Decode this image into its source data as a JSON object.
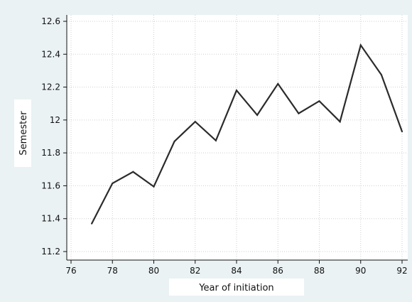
{
  "chart_data": {
    "type": "line",
    "title": "",
    "xlabel": "Year of initiation",
    "ylabel": "Semester",
    "xlim": [
      76,
      92
    ],
    "ylim": [
      11.2,
      12.6
    ],
    "xticks": [
      "76",
      "78",
      "80",
      "82",
      "84",
      "86",
      "88",
      "90",
      "92"
    ],
    "yticks": [
      "11.2",
      "11.4",
      "11.6",
      "11.8",
      "12",
      "12.2",
      "12.4",
      "12.6"
    ],
    "grid": true,
    "series": [
      {
        "x": [
          77,
          78,
          79,
          80,
          81,
          82,
          83,
          84,
          85,
          86,
          87,
          88,
          89,
          90,
          91,
          92
        ],
        "y": [
          11.37,
          11.615,
          11.685,
          11.595,
          11.87,
          11.99,
          11.875,
          12.18,
          12.03,
          12.22,
          12.04,
          12.115,
          11.99,
          12.455,
          12.275,
          11.93
        ]
      }
    ],
    "colors": {
      "line": "#2b2b2b",
      "plot_bg": "#ffffff",
      "page_bg": "#eaf2f3",
      "grid": "#cfcfcf"
    }
  }
}
